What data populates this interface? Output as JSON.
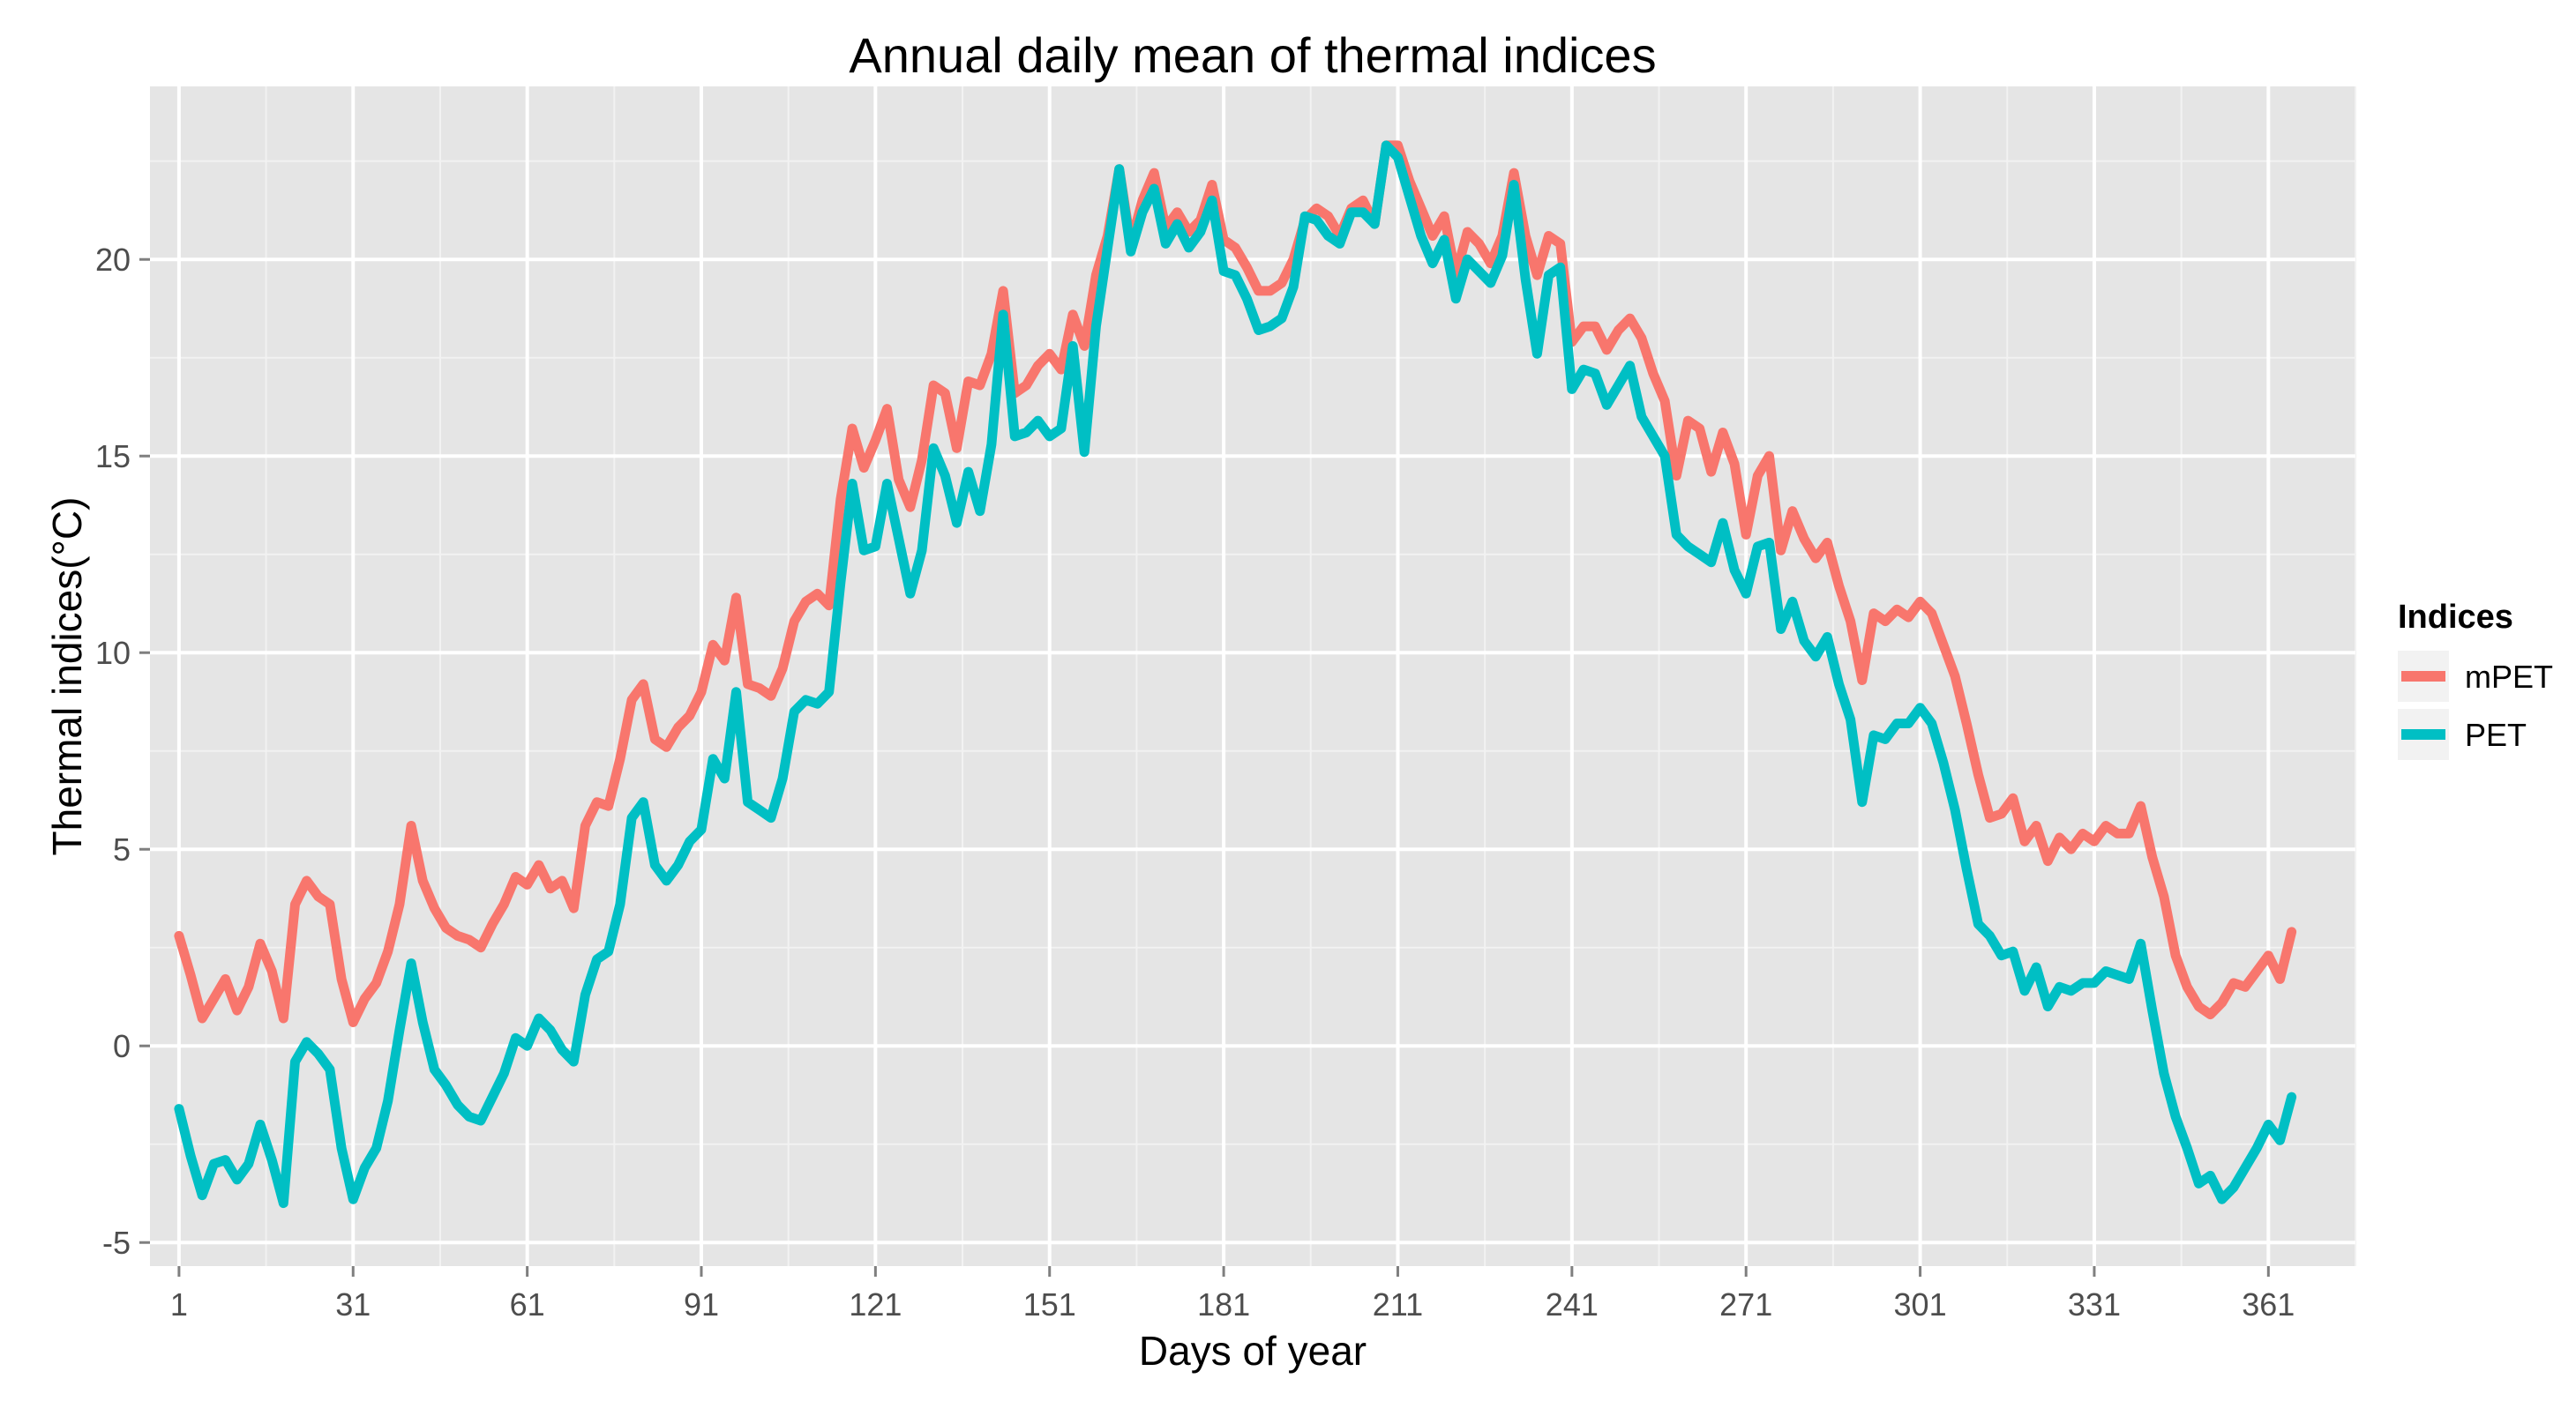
{
  "chart_data": {
    "type": "line",
    "title": "Annual daily mean of thermal indices",
    "xlabel": "Days of year",
    "ylabel": "Thermal indices(°C)",
    "xlim": [
      -4,
      376
    ],
    "ylim": [
      -5.6,
      24.4
    ],
    "xticks": [
      1,
      31,
      61,
      91,
      121,
      151,
      181,
      211,
      241,
      271,
      301,
      331,
      361
    ],
    "xtick_labels": [
      "1",
      "31",
      "61",
      "91",
      "121",
      "151",
      "181",
      "211",
      "241",
      "271",
      "301",
      "331",
      "361"
    ],
    "yticks": [
      -5,
      0,
      5,
      10,
      15,
      20
    ],
    "ytick_labels": [
      "-5",
      "0",
      "5",
      "10",
      "15",
      "20"
    ],
    "grid": true,
    "background": "#e5e5e5",
    "legend": {
      "title": "Indices",
      "position": "right"
    },
    "series": [
      {
        "name": "mPET",
        "color": "#f8766d",
        "x": [
          1,
          3,
          5,
          7,
          9,
          11,
          13,
          15,
          17,
          19,
          21,
          23,
          25,
          27,
          29,
          31,
          33,
          35,
          37,
          39,
          41,
          43,
          45,
          47,
          49,
          51,
          53,
          55,
          57,
          59,
          61,
          63,
          65,
          67,
          69,
          71,
          73,
          75,
          77,
          79,
          81,
          83,
          85,
          87,
          89,
          91,
          93,
          95,
          97,
          99,
          101,
          103,
          105,
          107,
          109,
          111,
          113,
          115,
          117,
          119,
          121,
          123,
          125,
          127,
          129,
          131,
          133,
          135,
          137,
          139,
          141,
          143,
          145,
          147,
          149,
          151,
          153,
          155,
          157,
          159,
          161,
          163,
          165,
          167,
          169,
          171,
          173,
          175,
          177,
          179,
          181,
          183,
          185,
          187,
          189,
          191,
          193,
          195,
          197,
          199,
          201,
          203,
          205,
          207,
          209,
          211,
          213,
          215,
          217,
          219,
          221,
          223,
          225,
          227,
          229,
          231,
          233,
          235,
          237,
          239,
          241,
          243,
          245,
          247,
          249,
          251,
          253,
          255,
          257,
          259,
          261,
          263,
          265,
          267,
          269,
          271,
          273,
          275,
          277,
          279,
          281,
          283,
          285,
          287,
          289,
          291,
          293,
          295,
          297,
          299,
          301,
          303,
          305,
          307,
          309,
          311,
          313,
          315,
          317,
          319,
          321,
          323,
          325,
          327,
          329,
          331,
          333,
          335,
          337,
          339,
          341,
          343,
          345,
          347,
          349,
          351,
          353,
          355,
          357,
          359,
          361,
          363,
          365
        ],
        "values": [
          2.8,
          1.8,
          0.7,
          1.2,
          1.7,
          0.9,
          1.5,
          2.6,
          1.9,
          0.7,
          3.6,
          4.2,
          3.8,
          3.6,
          1.7,
          0.6,
          1.2,
          1.6,
          2.4,
          3.6,
          5.6,
          4.2,
          3.5,
          3.0,
          2.8,
          2.7,
          2.5,
          3.1,
          3.6,
          4.3,
          4.1,
          4.6,
          4.0,
          4.2,
          3.5,
          5.6,
          6.2,
          6.1,
          7.3,
          8.8,
          9.2,
          7.8,
          7.6,
          8.1,
          8.4,
          9.0,
          10.2,
          9.8,
          11.4,
          9.2,
          9.1,
          8.9,
          9.6,
          10.8,
          11.3,
          11.5,
          11.2,
          13.9,
          15.7,
          14.7,
          15.4,
          16.2,
          14.4,
          13.7,
          14.9,
          16.8,
          16.6,
          15.2,
          16.9,
          16.8,
          17.6,
          19.2,
          16.6,
          16.8,
          17.3,
          17.6,
          17.2,
          18.6,
          17.8,
          19.6,
          20.6,
          22.3,
          20.4,
          21.5,
          22.2,
          20.8,
          21.2,
          20.7,
          21.0,
          21.9,
          20.5,
          20.3,
          19.8,
          19.2,
          19.2,
          19.4,
          20.0,
          21.0,
          21.3,
          21.1,
          20.6,
          21.3,
          21.5,
          20.9,
          22.9,
          22.9,
          22.0,
          21.3,
          20.6,
          21.1,
          19.6,
          20.7,
          20.4,
          19.9,
          20.6,
          22.2,
          20.6,
          19.6,
          20.6,
          20.4,
          17.9,
          18.3,
          18.3,
          17.7,
          18.2,
          18.5,
          18.0,
          17.1,
          16.4,
          14.5,
          15.9,
          15.7,
          14.6,
          15.6,
          14.8,
          13.0,
          14.5,
          15.0,
          12.6,
          13.6,
          12.9,
          12.4,
          12.8,
          11.7,
          10.8,
          9.3,
          11.0,
          10.8,
          11.1,
          10.9,
          11.3,
          11.0,
          10.2,
          9.4,
          8.2,
          6.9,
          5.8,
          5.9,
          6.3,
          5.2,
          5.6,
          4.7,
          5.3,
          5.0,
          5.4,
          5.2,
          5.6,
          5.4,
          5.4,
          6.1,
          4.8,
          3.8,
          2.3,
          1.5,
          1.0,
          0.8,
          1.1,
          1.6,
          1.5,
          1.9,
          2.3,
          1.7,
          2.9
        ]
      },
      {
        "name": "PET",
        "color": "#00bfc4",
        "x": [
          1,
          3,
          5,
          7,
          9,
          11,
          13,
          15,
          17,
          19,
          21,
          23,
          25,
          27,
          29,
          31,
          33,
          35,
          37,
          39,
          41,
          43,
          45,
          47,
          49,
          51,
          53,
          55,
          57,
          59,
          61,
          63,
          65,
          67,
          69,
          71,
          73,
          75,
          77,
          79,
          81,
          83,
          85,
          87,
          89,
          91,
          93,
          95,
          97,
          99,
          101,
          103,
          105,
          107,
          109,
          111,
          113,
          115,
          117,
          119,
          121,
          123,
          125,
          127,
          129,
          131,
          133,
          135,
          137,
          139,
          141,
          143,
          145,
          147,
          149,
          151,
          153,
          155,
          157,
          159,
          161,
          163,
          165,
          167,
          169,
          171,
          173,
          175,
          177,
          179,
          181,
          183,
          185,
          187,
          189,
          191,
          193,
          195,
          197,
          199,
          201,
          203,
          205,
          207,
          209,
          211,
          213,
          215,
          217,
          219,
          221,
          223,
          225,
          227,
          229,
          231,
          233,
          235,
          237,
          239,
          241,
          243,
          245,
          247,
          249,
          251,
          253,
          255,
          257,
          259,
          261,
          263,
          265,
          267,
          269,
          271,
          273,
          275,
          277,
          279,
          281,
          283,
          285,
          287,
          289,
          291,
          293,
          295,
          297,
          299,
          301,
          303,
          305,
          307,
          309,
          311,
          313,
          315,
          317,
          319,
          321,
          323,
          325,
          327,
          329,
          331,
          333,
          335,
          337,
          339,
          341,
          343,
          345,
          347,
          349,
          351,
          353,
          355,
          357,
          359,
          361,
          363,
          365
        ],
        "values": [
          -1.6,
          -2.8,
          -3.8,
          -3.0,
          -2.9,
          -3.4,
          -3.0,
          -2.0,
          -2.9,
          -4.0,
          -0.4,
          0.1,
          -0.2,
          -0.6,
          -2.6,
          -3.9,
          -3.1,
          -2.6,
          -1.4,
          0.4,
          2.1,
          0.6,
          -0.6,
          -1.0,
          -1.5,
          -1.8,
          -1.9,
          -1.3,
          -0.7,
          0.2,
          0.0,
          0.7,
          0.4,
          -0.1,
          -0.4,
          1.3,
          2.2,
          2.4,
          3.6,
          5.8,
          6.2,
          4.6,
          4.2,
          4.6,
          5.2,
          5.5,
          7.3,
          6.8,
          9.0,
          6.2,
          6.0,
          5.8,
          6.8,
          8.5,
          8.8,
          8.7,
          9.0,
          11.8,
          14.3,
          12.6,
          12.7,
          14.3,
          12.9,
          11.5,
          12.6,
          15.2,
          14.5,
          13.3,
          14.6,
          13.6,
          15.3,
          18.6,
          15.5,
          15.6,
          15.9,
          15.5,
          15.7,
          17.8,
          15.1,
          18.3,
          20.3,
          22.3,
          20.2,
          21.2,
          21.8,
          20.4,
          20.9,
          20.3,
          20.7,
          21.5,
          19.7,
          19.6,
          19.0,
          18.2,
          18.3,
          18.5,
          19.3,
          21.1,
          21.0,
          20.6,
          20.4,
          21.2,
          21.2,
          20.9,
          22.9,
          22.6,
          21.6,
          20.6,
          19.9,
          20.5,
          19.0,
          20.0,
          19.7,
          19.4,
          20.1,
          21.9,
          19.5,
          17.6,
          19.6,
          19.8,
          16.7,
          17.2,
          17.1,
          16.3,
          16.8,
          17.3,
          16.0,
          15.5,
          15.0,
          13.0,
          12.7,
          12.5,
          12.3,
          13.3,
          12.1,
          11.5,
          12.7,
          12.8,
          10.6,
          11.3,
          10.3,
          9.9,
          10.4,
          9.2,
          8.3,
          6.2,
          7.9,
          7.8,
          8.2,
          8.2,
          8.6,
          8.2,
          7.2,
          6.0,
          4.5,
          3.1,
          2.8,
          2.3,
          2.4,
          1.4,
          2.0,
          1.0,
          1.5,
          1.4,
          1.6,
          1.6,
          1.9,
          1.8,
          1.7,
          2.6,
          0.9,
          -0.7,
          -1.8,
          -2.6,
          -3.5,
          -3.3,
          -3.9,
          -3.6,
          -3.1,
          -2.6,
          -2.0,
          -2.4,
          -1.3
        ]
      }
    ]
  }
}
